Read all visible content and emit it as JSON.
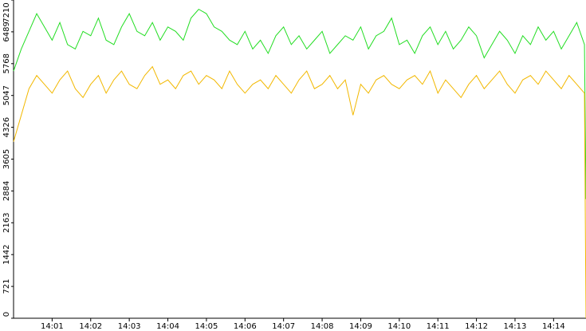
{
  "chart_data": {
    "type": "line",
    "x": [
      0,
      0.2,
      0.4,
      0.6,
      0.8,
      1,
      1.2,
      1.4,
      1.6,
      1.8,
      2,
      2.2,
      2.4,
      2.6,
      2.8,
      3,
      3.2,
      3.4,
      3.6,
      3.8,
      4,
      4.2,
      4.4,
      4.6,
      4.8,
      5,
      5.2,
      5.4,
      5.6,
      5.8,
      6,
      6.2,
      6.4,
      6.6,
      6.8,
      7,
      7.2,
      7.4,
      7.6,
      7.8,
      8,
      8.2,
      8.4,
      8.6,
      8.8,
      9,
      9.2,
      9.4,
      9.6,
      9.8,
      10,
      10.2,
      10.4,
      10.6,
      10.8,
      11,
      11.2,
      11.4,
      11.6,
      11.8,
      12,
      12.2,
      12.4,
      12.6,
      12.8,
      13,
      13.2,
      13.4,
      13.6,
      13.8,
      14,
      14.2,
      14.4,
      14.6,
      14.8,
      14.84
    ],
    "series": [
      {
        "color": "#22dd22",
        "values": [
          5600,
          6100,
          6500,
          6900,
          6600,
          6300,
          6700,
          6200,
          6100,
          6500,
          6400,
          6800,
          6300,
          6200,
          6600,
          6900,
          6500,
          6400,
          6700,
          6300,
          6600,
          6500,
          6300,
          6800,
          7000,
          6900,
          6600,
          6500,
          6300,
          6200,
          6500,
          6100,
          6300,
          6000,
          6400,
          6600,
          6200,
          6400,
          6100,
          6300,
          6500,
          6000,
          6200,
          6400,
          6300,
          6600,
          6100,
          6400,
          6500,
          6800,
          6200,
          6300,
          6000,
          6400,
          6600,
          6200,
          6500,
          6100,
          6300,
          6600,
          6400,
          5900,
          6200,
          6500,
          6300,
          6000,
          6400,
          6200,
          6600,
          6300,
          6500,
          6100,
          6400,
          6700,
          6200,
          2700
        ]
      },
      {
        "color": "#f2b800",
        "values": [
          4000,
          4600,
          5200,
          5500,
          5300,
          5100,
          5400,
          5600,
          5200,
          5000,
          5300,
          5500,
          5100,
          5400,
          5600,
          5300,
          5200,
          5500,
          5700,
          5300,
          5400,
          5200,
          5500,
          5600,
          5300,
          5500,
          5400,
          5200,
          5600,
          5300,
          5100,
          5300,
          5400,
          5200,
          5500,
          5300,
          5100,
          5400,
          5600,
          5200,
          5300,
          5500,
          5200,
          5400,
          4600,
          5300,
          5100,
          5400,
          5500,
          5300,
          5200,
          5400,
          5500,
          5300,
          5600,
          5100,
          5400,
          5200,
          5000,
          5300,
          5500,
          5200,
          5400,
          5600,
          5300,
          5100,
          5400,
          5500,
          5300,
          5600,
          5400,
          5200,
          5500,
          5300,
          5100,
          0
        ]
      }
    ],
    "xlim": [
      0,
      14.84
    ],
    "xticks": [
      {
        "value": 1,
        "label": "14:01"
      },
      {
        "value": 2,
        "label": "14:02"
      },
      {
        "value": 3,
        "label": "14:03"
      },
      {
        "value": 4,
        "label": "14:04"
      },
      {
        "value": 5,
        "label": "14:05"
      },
      {
        "value": 6,
        "label": "14:06"
      },
      {
        "value": 7,
        "label": "14:07"
      },
      {
        "value": 8,
        "label": "14:08"
      },
      {
        "value": 9,
        "label": "14:09"
      },
      {
        "value": 10,
        "label": "14:10"
      },
      {
        "value": 11,
        "label": "14:11"
      },
      {
        "value": 12,
        "label": "14:12"
      },
      {
        "value": 13,
        "label": "14:13"
      },
      {
        "value": 14,
        "label": "14:14"
      }
    ],
    "ylim": [
      0,
      7210
    ],
    "yticks": [
      0,
      721,
      1442,
      2163,
      2884,
      3605,
      4326,
      5047,
      5768,
      6489,
      7210
    ]
  }
}
